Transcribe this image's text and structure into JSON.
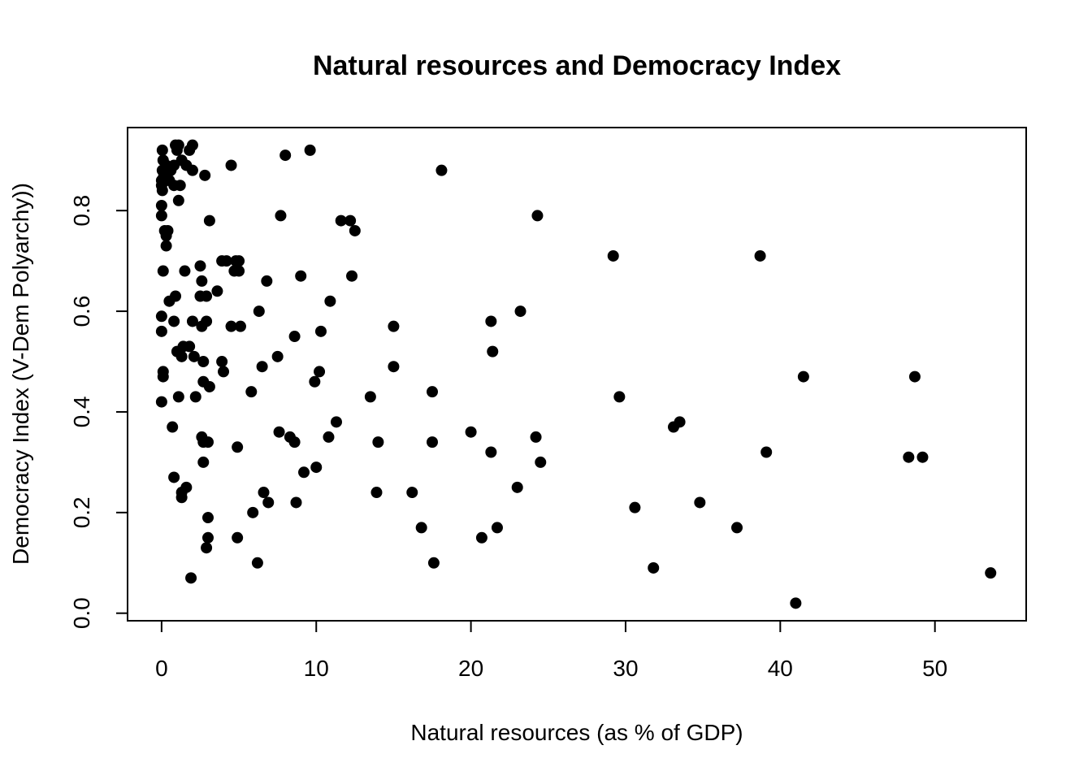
{
  "chart_data": {
    "type": "scatter",
    "title": "Natural resources and Democracy Index",
    "xlabel": "Natural resources (as % of GDP)",
    "ylabel": "Democracy Index (V-Dem Polyarchy))",
    "xlim": [
      -2.2,
      55.9
    ],
    "ylim": [
      -0.015,
      0.965
    ],
    "x_ticks": [
      0,
      10,
      20,
      30,
      40,
      50
    ],
    "x_tick_labels": [
      "0",
      "10",
      "20",
      "30",
      "40",
      "50"
    ],
    "y_ticks": [
      0.0,
      0.2,
      0.4,
      0.6,
      0.8
    ],
    "y_tick_labels": [
      "0.0",
      "0.2",
      "0.4",
      "0.6",
      "0.8"
    ],
    "grid": false,
    "legend": "none",
    "marker_color": "#000000",
    "points": [
      [
        0.05,
        0.92
      ],
      [
        0.1,
        0.9
      ],
      [
        0.3,
        0.89
      ],
      [
        0.05,
        0.88
      ],
      [
        0.15,
        0.87
      ],
      [
        0.0,
        0.86
      ],
      [
        0.3,
        0.86
      ],
      [
        0.0,
        0.85
      ],
      [
        0.05,
        0.84
      ],
      [
        0.6,
        0.88
      ],
      [
        0.8,
        0.89
      ],
      [
        0.5,
        0.86
      ],
      [
        0.9,
        0.93
      ],
      [
        1.0,
        0.92
      ],
      [
        1.1,
        0.93
      ],
      [
        1.3,
        0.9
      ],
      [
        1.6,
        0.89
      ],
      [
        1.8,
        0.92
      ],
      [
        2.0,
        0.93
      ],
      [
        2.0,
        0.88
      ],
      [
        1.2,
        0.85
      ],
      [
        0.8,
        0.85
      ],
      [
        1.1,
        0.82
      ],
      [
        0.0,
        0.81
      ],
      [
        0.0,
        0.79
      ],
      [
        0.2,
        0.76
      ],
      [
        0.4,
        0.76
      ],
      [
        0.3,
        0.75
      ],
      [
        0.3,
        0.73
      ],
      [
        2.8,
        0.87
      ],
      [
        4.5,
        0.89
      ],
      [
        8.0,
        0.91
      ],
      [
        9.6,
        0.92
      ],
      [
        18.1,
        0.88
      ],
      [
        3.1,
        0.78
      ],
      [
        7.7,
        0.79
      ],
      [
        11.6,
        0.78
      ],
      [
        12.2,
        0.78
      ],
      [
        12.5,
        0.76
      ],
      [
        24.3,
        0.79
      ],
      [
        29.2,
        0.71
      ],
      [
        38.7,
        0.71
      ],
      [
        0.1,
        0.68
      ],
      [
        1.5,
        0.68
      ],
      [
        2.5,
        0.69
      ],
      [
        3.9,
        0.7
      ],
      [
        4.2,
        0.7
      ],
      [
        4.8,
        0.7
      ],
      [
        5.0,
        0.7
      ],
      [
        4.7,
        0.68
      ],
      [
        5.0,
        0.68
      ],
      [
        2.6,
        0.66
      ],
      [
        6.8,
        0.66
      ],
      [
        9.0,
        0.67
      ],
      [
        12.3,
        0.67
      ],
      [
        3.6,
        0.64
      ],
      [
        2.5,
        0.63
      ],
      [
        2.9,
        0.63
      ],
      [
        0.9,
        0.63
      ],
      [
        0.5,
        0.62
      ],
      [
        10.9,
        0.62
      ],
      [
        6.3,
        0.6
      ],
      [
        23.2,
        0.6
      ],
      [
        0.0,
        0.59
      ],
      [
        0.8,
        0.58
      ],
      [
        2.0,
        0.58
      ],
      [
        2.9,
        0.58
      ],
      [
        2.6,
        0.57
      ],
      [
        4.5,
        0.57
      ],
      [
        5.1,
        0.57
      ],
      [
        15.0,
        0.57
      ],
      [
        21.3,
        0.58
      ],
      [
        0.0,
        0.56
      ],
      [
        10.3,
        0.56
      ],
      [
        8.6,
        0.55
      ],
      [
        1.4,
        0.53
      ],
      [
        1.8,
        0.53
      ],
      [
        1.0,
        0.52
      ],
      [
        1.3,
        0.51
      ],
      [
        2.1,
        0.51
      ],
      [
        21.4,
        0.52
      ],
      [
        7.5,
        0.51
      ],
      [
        2.7,
        0.5
      ],
      [
        3.9,
        0.5
      ],
      [
        4.0,
        0.48
      ],
      [
        6.5,
        0.49
      ],
      [
        15.0,
        0.49
      ],
      [
        0.1,
        0.48
      ],
      [
        0.1,
        0.47
      ],
      [
        10.2,
        0.48
      ],
      [
        9.9,
        0.46
      ],
      [
        2.7,
        0.46
      ],
      [
        3.1,
        0.45
      ],
      [
        5.8,
        0.44
      ],
      [
        17.5,
        0.44
      ],
      [
        0.0,
        0.42
      ],
      [
        1.1,
        0.43
      ],
      [
        2.2,
        0.43
      ],
      [
        13.5,
        0.43
      ],
      [
        29.6,
        0.43
      ],
      [
        41.5,
        0.47
      ],
      [
        48.7,
        0.47
      ],
      [
        11.3,
        0.38
      ],
      [
        33.1,
        0.37
      ],
      [
        33.5,
        0.38
      ],
      [
        0.7,
        0.37
      ],
      [
        7.6,
        0.36
      ],
      [
        20.0,
        0.36
      ],
      [
        2.6,
        0.35
      ],
      [
        8.3,
        0.35
      ],
      [
        10.8,
        0.35
      ],
      [
        24.2,
        0.35
      ],
      [
        2.7,
        0.34
      ],
      [
        3.0,
        0.34
      ],
      [
        8.6,
        0.34
      ],
      [
        14.0,
        0.34
      ],
      [
        17.5,
        0.34
      ],
      [
        4.9,
        0.33
      ],
      [
        21.3,
        0.32
      ],
      [
        39.1,
        0.32
      ],
      [
        48.3,
        0.31
      ],
      [
        49.2,
        0.31
      ],
      [
        2.7,
        0.3
      ],
      [
        24.5,
        0.3
      ],
      [
        10.0,
        0.29
      ],
      [
        9.2,
        0.28
      ],
      [
        0.8,
        0.27
      ],
      [
        1.6,
        0.25
      ],
      [
        23.0,
        0.25
      ],
      [
        1.3,
        0.24
      ],
      [
        6.6,
        0.24
      ],
      [
        13.9,
        0.24
      ],
      [
        16.2,
        0.24
      ],
      [
        1.3,
        0.23
      ],
      [
        6.9,
        0.22
      ],
      [
        8.7,
        0.22
      ],
      [
        34.8,
        0.22
      ],
      [
        30.6,
        0.21
      ],
      [
        5.9,
        0.2
      ],
      [
        3.0,
        0.19
      ],
      [
        16.8,
        0.17
      ],
      [
        21.7,
        0.17
      ],
      [
        37.2,
        0.17
      ],
      [
        3.0,
        0.15
      ],
      [
        4.9,
        0.15
      ],
      [
        20.7,
        0.15
      ],
      [
        2.9,
        0.13
      ],
      [
        6.2,
        0.1
      ],
      [
        17.6,
        0.1
      ],
      [
        31.8,
        0.09
      ],
      [
        53.6,
        0.08
      ],
      [
        1.9,
        0.07
      ],
      [
        41.0,
        0.02
      ]
    ]
  }
}
